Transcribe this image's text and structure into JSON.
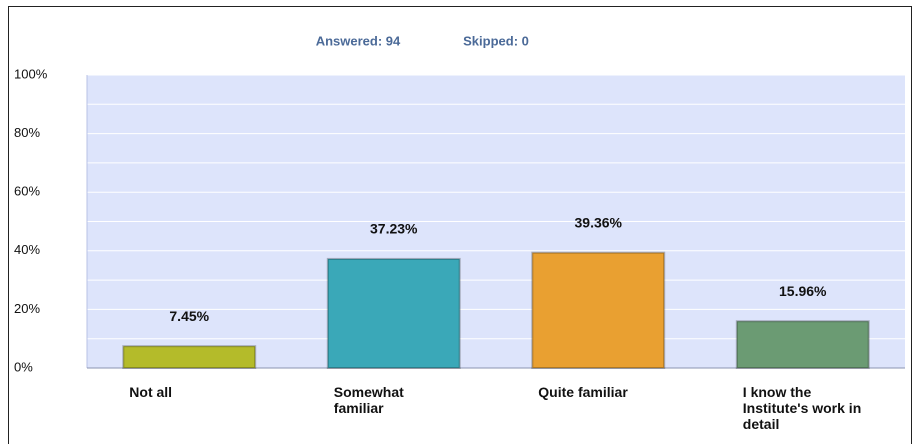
{
  "chart_data": {
    "type": "bar",
    "annotations": [
      "Answered: 94",
      "Skipped: 0"
    ],
    "categories": [
      "Not all",
      "Somewhat familiar",
      "Quite familiar",
      "I know the Institute's work in detail"
    ],
    "values": [
      7.45,
      37.23,
      39.36,
      15.96
    ],
    "value_labels": [
      "7.45%",
      "37.23%",
      "39.36%",
      "15.96%"
    ],
    "colors": [
      "#b4bb2a",
      "#3aa8b8",
      "#e9a031",
      "#6b9b73"
    ],
    "ylim": [
      0,
      100
    ],
    "yticks": [
      {
        "value": 0,
        "label": "0%"
      },
      {
        "value": 20,
        "label": "20%"
      },
      {
        "value": 40,
        "label": "40%"
      },
      {
        "value": 60,
        "label": "60%"
      },
      {
        "value": 80,
        "label": "80%"
      },
      {
        "value": 100,
        "label": "100%"
      }
    ],
    "grid": true
  }
}
